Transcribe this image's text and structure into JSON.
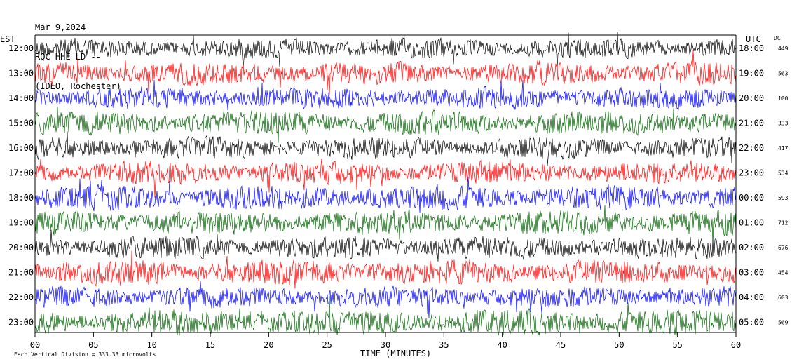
{
  "header": {
    "date": "Mar 9,2024",
    "channel": "RQC HHE LD --",
    "station": "(IDEO, Rochester)"
  },
  "axis": {
    "left_label": "EST",
    "right_label": "UTC",
    "dc_label": "DC",
    "x_title": "TIME (MINUTES)",
    "scale_note": "Each Vertical Division =  333.33 microvolts"
  },
  "chart_data": {
    "type": "line",
    "title": "Mar 9,2024",
    "xlabel": "TIME (MINUTES)",
    "ylabel": "",
    "xlim": [
      0,
      60
    ],
    "x_ticks": [
      "00",
      "05",
      "10",
      "15",
      "20",
      "25",
      "30",
      "35",
      "40",
      "45",
      "50",
      "55",
      "60"
    ],
    "vertical_division_microvolts": 333.33,
    "colors": [
      "#000000",
      "#ff0000",
      "#0000ff",
      "#006400"
    ],
    "traces": [
      {
        "est": "12:00",
        "utc": "18:00",
        "dc": "449",
        "color": "#000000",
        "amp": 14
      },
      {
        "est": "13:00",
        "utc": "19:00",
        "dc": "563",
        "color": "#ff0000",
        "amp": 16
      },
      {
        "est": "14:00",
        "utc": "20:00",
        "dc": "100",
        "color": "#0000ff",
        "amp": 15
      },
      {
        "est": "15:00",
        "utc": "21:00",
        "dc": "333",
        "color": "#006400",
        "amp": 17
      },
      {
        "est": "16:00",
        "utc": "22:00",
        "dc": "417",
        "color": "#000000",
        "amp": 15
      },
      {
        "est": "17:00",
        "utc": "23:00",
        "dc": "534",
        "color": "#ff0000",
        "amp": 16
      },
      {
        "est": "18:00",
        "utc": "00:00",
        "dc": "593",
        "color": "#0000ff",
        "amp": 17
      },
      {
        "est": "19:00",
        "utc": "01:00",
        "dc": "712",
        "color": "#006400",
        "amp": 17
      },
      {
        "est": "20:00",
        "utc": "02:00",
        "dc": "676",
        "color": "#000000",
        "amp": 16
      },
      {
        "est": "21:00",
        "utc": "03:00",
        "dc": "454",
        "color": "#ff0000",
        "amp": 17
      },
      {
        "est": "22:00",
        "utc": "04:00",
        "dc": "603",
        "color": "#0000ff",
        "amp": 15
      },
      {
        "est": "23:00",
        "utc": "05:00",
        "dc": "569",
        "color": "#006400",
        "amp": 18
      }
    ]
  }
}
